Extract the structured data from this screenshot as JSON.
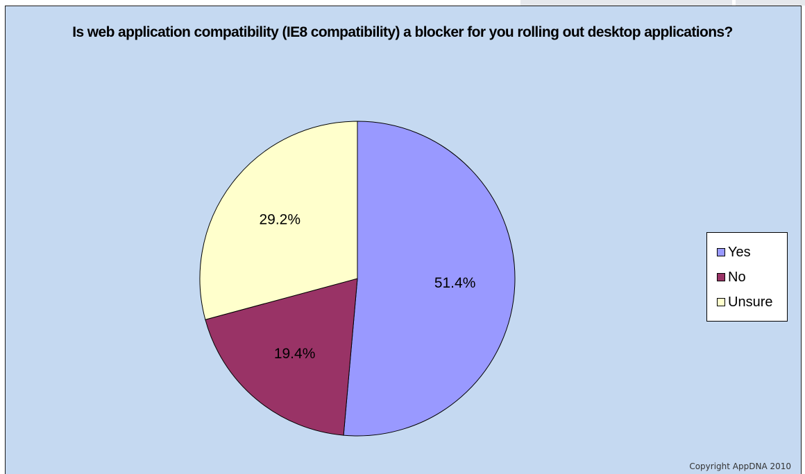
{
  "chart_data": {
    "type": "pie",
    "title": "Is web application compatibility (IE8 compatibility) a blocker for you rolling out desktop applications?",
    "categories": [
      "Yes",
      "No",
      "Unsure"
    ],
    "values": [
      51.4,
      19.4,
      29.2
    ],
    "labels": [
      "51.4%",
      "19.4%",
      "29.2%"
    ],
    "colors": [
      "#9999ff",
      "#993366",
      "#ffffcc"
    ],
    "legend_position": "right"
  },
  "footer": {
    "copyright": "Copyright AppDNA 2010"
  }
}
